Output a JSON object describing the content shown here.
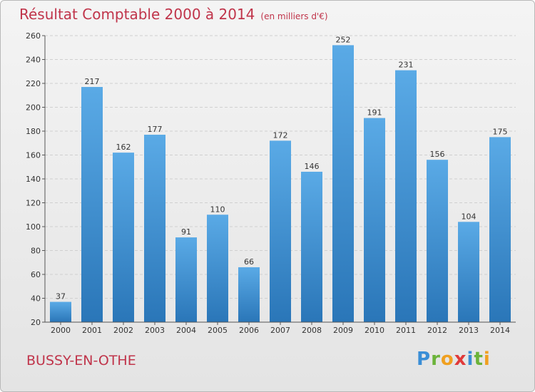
{
  "header": {
    "title": "Résultat Comptable 2000 à 2014",
    "unit": "(en milliers d'€)"
  },
  "footer": {
    "commune": "BUSSY-EN-OTHE",
    "logo": [
      {
        "ch": "P",
        "color": "#3a8ed6"
      },
      {
        "ch": "r",
        "color": "#6bb33a"
      },
      {
        "ch": "o",
        "color": "#f0a020"
      },
      {
        "ch": "x",
        "color": "#e03a3a"
      },
      {
        "ch": "i",
        "color": "#3a8ed6"
      },
      {
        "ch": "t",
        "color": "#6bb33a"
      },
      {
        "ch": "i",
        "color": "#f0a020"
      }
    ]
  },
  "colors": {
    "title": "#c0344a",
    "bar_top": "#5aaae6",
    "bar_bottom": "#2a76b8",
    "grid": "#cfcfcf"
  },
  "chart_data": {
    "type": "bar",
    "title": "Résultat Comptable 2000 à 2014",
    "subtitle": "(en milliers d'€)",
    "xlabel": "",
    "ylabel": "",
    "categories": [
      "2000",
      "2001",
      "2002",
      "2003",
      "2004",
      "2005",
      "2006",
      "2007",
      "2008",
      "2009",
      "2010",
      "2011",
      "2012",
      "2013",
      "2014"
    ],
    "values": [
      37,
      217,
      162,
      177,
      91,
      110,
      66,
      172,
      146,
      252,
      191,
      231,
      156,
      104,
      175
    ],
    "ylim": [
      20,
      260
    ],
    "yticks": [
      20,
      40,
      60,
      80,
      100,
      120,
      140,
      160,
      180,
      200,
      220,
      240,
      260
    ],
    "grid": true,
    "legend": "none"
  }
}
